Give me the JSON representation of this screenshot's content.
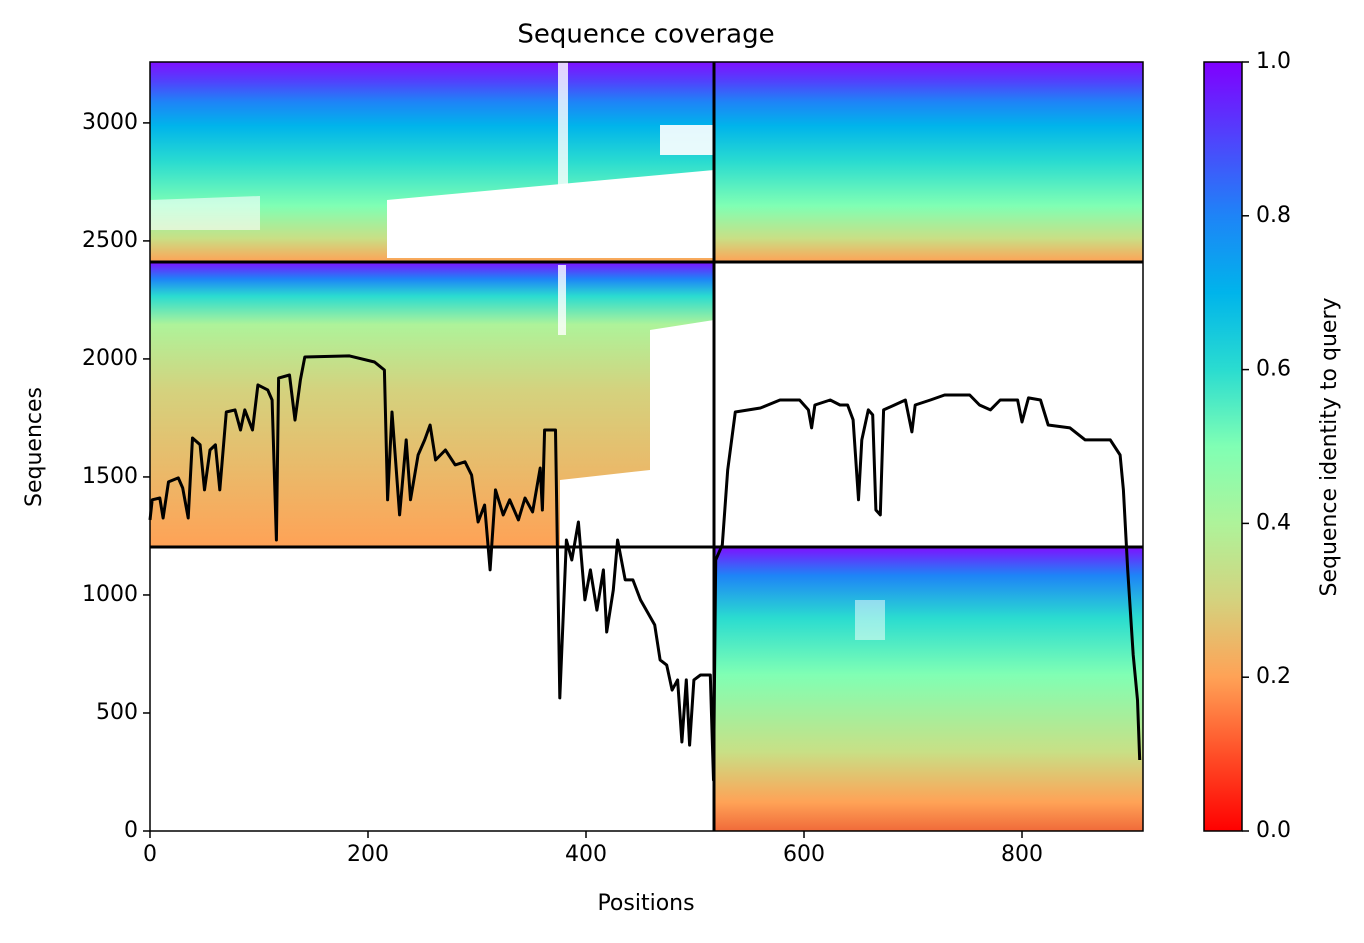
{
  "chart_data": {
    "type": "line",
    "title": "Sequence coverage",
    "xlabel": "Positions",
    "ylabel": "Sequences",
    "color": "#000000",
    "x": [
      0,
      2,
      9,
      12,
      17,
      26,
      30,
      35,
      39,
      46,
      50,
      55,
      60,
      64,
      70,
      78,
      83,
      87,
      94,
      99,
      108,
      112,
      116,
      118,
      128,
      133,
      138,
      142,
      183,
      206,
      215,
      218,
      222,
      229,
      235,
      239,
      246,
      252,
      257,
      262,
      271,
      280,
      289,
      295,
      301,
      307,
      312,
      317,
      324,
      330,
      338,
      344,
      351,
      358,
      360,
      362,
      372,
      376,
      382,
      387,
      393,
      399,
      404,
      410,
      416,
      419,
      425,
      429,
      436,
      443,
      450,
      463,
      468,
      474,
      479,
      484,
      488,
      492,
      495,
      499,
      505,
      514,
      517,
      519,
      525,
      530,
      537,
      560,
      578,
      596,
      604,
      607,
      610,
      624,
      633,
      640,
      645,
      650,
      653,
      659,
      663,
      666,
      670,
      673,
      683,
      693,
      699,
      702,
      716,
      729,
      752,
      761,
      771,
      780,
      796,
      800,
      806,
      817,
      824,
      844,
      858,
      881,
      890,
      893,
      897,
      902,
      906,
      908
    ],
    "values": [
      1318,
      1403,
      1411,
      1326,
      1479,
      1496,
      1453,
      1326,
      1665,
      1636,
      1445,
      1614,
      1636,
      1445,
      1775,
      1784,
      1699,
      1784,
      1699,
      1890,
      1869,
      1826,
      1233,
      1919,
      1932,
      1741,
      1911,
      2008,
      2013,
      1987,
      1953,
      1403,
      1775,
      1339,
      1657,
      1403,
      1593,
      1657,
      1720,
      1572,
      1614,
      1551,
      1564,
      1508,
      1309,
      1381,
      1106,
      1445,
      1339,
      1403,
      1318,
      1411,
      1352,
      1538,
      1360,
      1699,
      1699,
      564,
      1233,
      1148,
      1309,
      979,
      1106,
      936,
      1106,
      843,
      1021,
      1233,
      1064,
      1064,
      979,
      873,
      725,
      703,
      597,
      640,
      377,
      640,
      364,
      640,
      661,
      661,
      216,
      1148,
      1212,
      1530,
      1775,
      1792,
      1826,
      1826,
      1784,
      1708,
      1805,
      1826,
      1805,
      1805,
      1742,
      1403,
      1657,
      1784,
      1763,
      1360,
      1339,
      1784,
      1805,
      1826,
      1691,
      1805,
      1826,
      1847,
      1847,
      1805,
      1784,
      1826,
      1826,
      1733,
      1835,
      1826,
      1720,
      1708,
      1657,
      1657,
      1593,
      1445,
      1106,
      746,
      555,
      301
    ],
    "xlim": [
      0,
      911
    ],
    "ylim": [
      0,
      3258
    ],
    "xticks": [
      0,
      200,
      400,
      600,
      800
    ],
    "yticks": [
      0,
      500,
      1000,
      1500,
      2000,
      2500,
      3000
    ],
    "colorbar": {
      "label": "Sequence identity to query",
      "lim": [
        0,
        1
      ],
      "ticks": [
        {
          "value": 0,
          "label": "0.0"
        },
        {
          "value": 0.2,
          "label": "0.2"
        },
        {
          "value": 0.4,
          "label": "0.4"
        },
        {
          "value": 0.6,
          "label": "0.6"
        },
        {
          "value": 0.8,
          "label": "0.8"
        },
        {
          "value": 1,
          "label": "1.0"
        }
      ]
    }
  }
}
